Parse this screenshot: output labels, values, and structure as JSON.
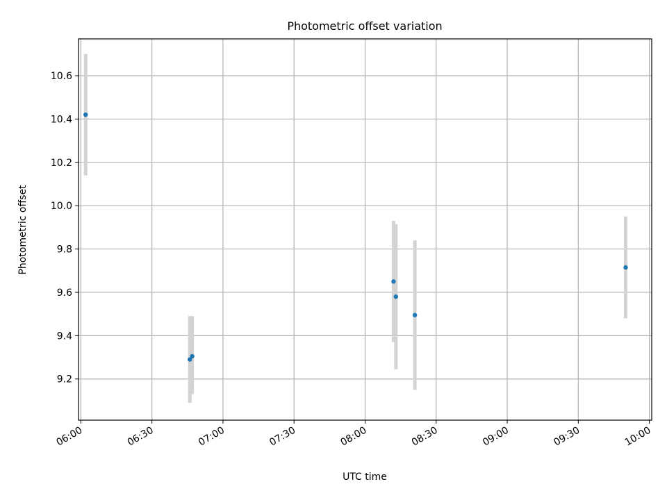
{
  "chart_data": {
    "type": "scatter",
    "title": "Photometric offset variation",
    "xlabel": "UTC time",
    "ylabel": "Photometric offset",
    "x_ticks": [
      "06:00",
      "06:30",
      "07:00",
      "07:30",
      "08:00",
      "08:30",
      "09:00",
      "09:30",
      "10:00"
    ],
    "y_ticks": [
      9.2,
      9.4,
      9.6,
      9.8,
      10.0,
      10.2,
      10.4,
      10.6
    ],
    "y_tick_labels": [
      "9.2",
      "9.4",
      "9.6",
      "9.8",
      "10.0",
      "10.2",
      "10.4",
      "10.6"
    ],
    "xlim": [
      "05:59",
      "10:01"
    ],
    "ylim": [
      9.01,
      10.77
    ],
    "grid": true,
    "marker_color": "#1f77b4",
    "errorbar_color": "#d3d3d3",
    "points": [
      {
        "time": "06:02",
        "y": 10.42,
        "ylow": 10.14,
        "yhigh": 10.7
      },
      {
        "time": "06:46",
        "y": 9.29,
        "ylow": 9.09,
        "yhigh": 9.49
      },
      {
        "time": "06:47",
        "y": 9.305,
        "ylow": 9.13,
        "yhigh": 9.49
      },
      {
        "time": "08:12",
        "y": 9.65,
        "ylow": 9.37,
        "yhigh": 9.93
      },
      {
        "time": "08:13",
        "y": 9.58,
        "ylow": 9.245,
        "yhigh": 9.915
      },
      {
        "time": "08:21",
        "y": 9.495,
        "ylow": 9.15,
        "yhigh": 9.84
      },
      {
        "time": "09:50",
        "y": 9.715,
        "ylow": 9.48,
        "yhigh": 9.95
      }
    ]
  }
}
